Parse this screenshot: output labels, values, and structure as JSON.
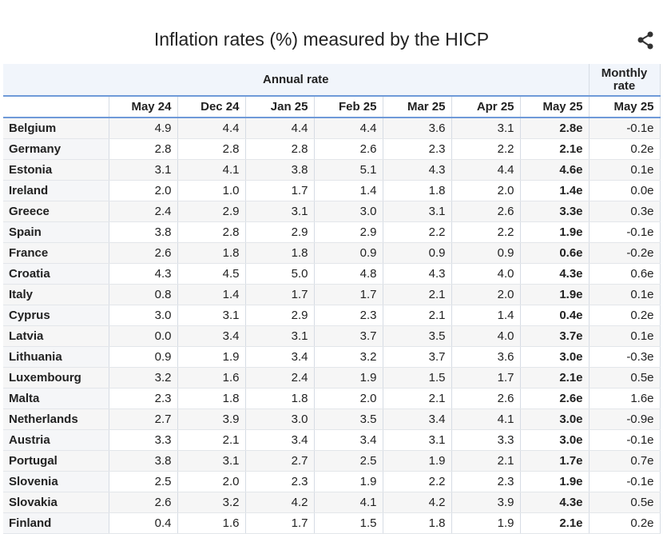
{
  "title": "Inflation rates (%) measured by the HICP",
  "table": {
    "groups": [
      "Annual rate",
      "Monthly rate"
    ],
    "columns": [
      "May 24",
      "Dec 24",
      "Jan 25",
      "Feb 25",
      "Mar 25",
      "Apr 25",
      "May 25",
      "May 25"
    ],
    "rows": [
      [
        "Belgium",
        "4.9",
        "4.4",
        "4.4",
        "4.4",
        "3.6",
        "3.1",
        "2.8e",
        "-0.1e"
      ],
      [
        "Germany",
        "2.8",
        "2.8",
        "2.8",
        "2.6",
        "2.3",
        "2.2",
        "2.1e",
        "0.2e"
      ],
      [
        "Estonia",
        "3.1",
        "4.1",
        "3.8",
        "5.1",
        "4.3",
        "4.4",
        "4.6e",
        "0.1e"
      ],
      [
        "Ireland",
        "2.0",
        "1.0",
        "1.7",
        "1.4",
        "1.8",
        "2.0",
        "1.4e",
        "0.0e"
      ],
      [
        "Greece",
        "2.4",
        "2.9",
        "3.1",
        "3.0",
        "3.1",
        "2.6",
        "3.3e",
        "0.3e"
      ],
      [
        "Spain",
        "3.8",
        "2.8",
        "2.9",
        "2.9",
        "2.2",
        "2.2",
        "1.9e",
        "-0.1e"
      ],
      [
        "France",
        "2.6",
        "1.8",
        "1.8",
        "0.9",
        "0.9",
        "0.9",
        "0.6e",
        "-0.2e"
      ],
      [
        "Croatia",
        "4.3",
        "4.5",
        "5.0",
        "4.8",
        "4.3",
        "4.0",
        "4.3e",
        "0.6e"
      ],
      [
        "Italy",
        "0.8",
        "1.4",
        "1.7",
        "1.7",
        "2.1",
        "2.0",
        "1.9e",
        "0.1e"
      ],
      [
        "Cyprus",
        "3.0",
        "3.1",
        "2.9",
        "2.3",
        "2.1",
        "1.4",
        "0.4e",
        "0.2e"
      ],
      [
        "Latvia",
        "0.0",
        "3.4",
        "3.1",
        "3.7",
        "3.5",
        "4.0",
        "3.7e",
        "0.1e"
      ],
      [
        "Lithuania",
        "0.9",
        "1.9",
        "3.4",
        "3.2",
        "3.7",
        "3.6",
        "3.0e",
        "-0.3e"
      ],
      [
        "Luxembourg",
        "3.2",
        "1.6",
        "2.4",
        "1.9",
        "1.5",
        "1.7",
        "2.1e",
        "0.5e"
      ],
      [
        "Malta",
        "2.3",
        "1.8",
        "1.8",
        "2.0",
        "2.1",
        "2.6",
        "2.6e",
        "1.6e"
      ],
      [
        "Netherlands",
        "2.7",
        "3.9",
        "3.0",
        "3.5",
        "3.4",
        "4.1",
        "3.0e",
        "-0.9e"
      ],
      [
        "Austria",
        "3.3",
        "2.1",
        "3.4",
        "3.4",
        "3.1",
        "3.3",
        "3.0e",
        "-0.1e"
      ],
      [
        "Portugal",
        "3.8",
        "3.1",
        "2.7",
        "2.5",
        "1.9",
        "2.1",
        "1.7e",
        "0.7e"
      ],
      [
        "Slovenia",
        "2.5",
        "2.0",
        "2.3",
        "1.9",
        "2.2",
        "2.3",
        "1.9e",
        "-0.1e"
      ],
      [
        "Slovakia",
        "2.6",
        "3.2",
        "4.2",
        "4.1",
        "4.2",
        "3.9",
        "4.3e",
        "0.5e"
      ],
      [
        "Finland",
        "0.4",
        "1.6",
        "1.7",
        "1.5",
        "1.8",
        "1.9",
        "2.1e",
        "0.2e"
      ]
    ]
  }
}
